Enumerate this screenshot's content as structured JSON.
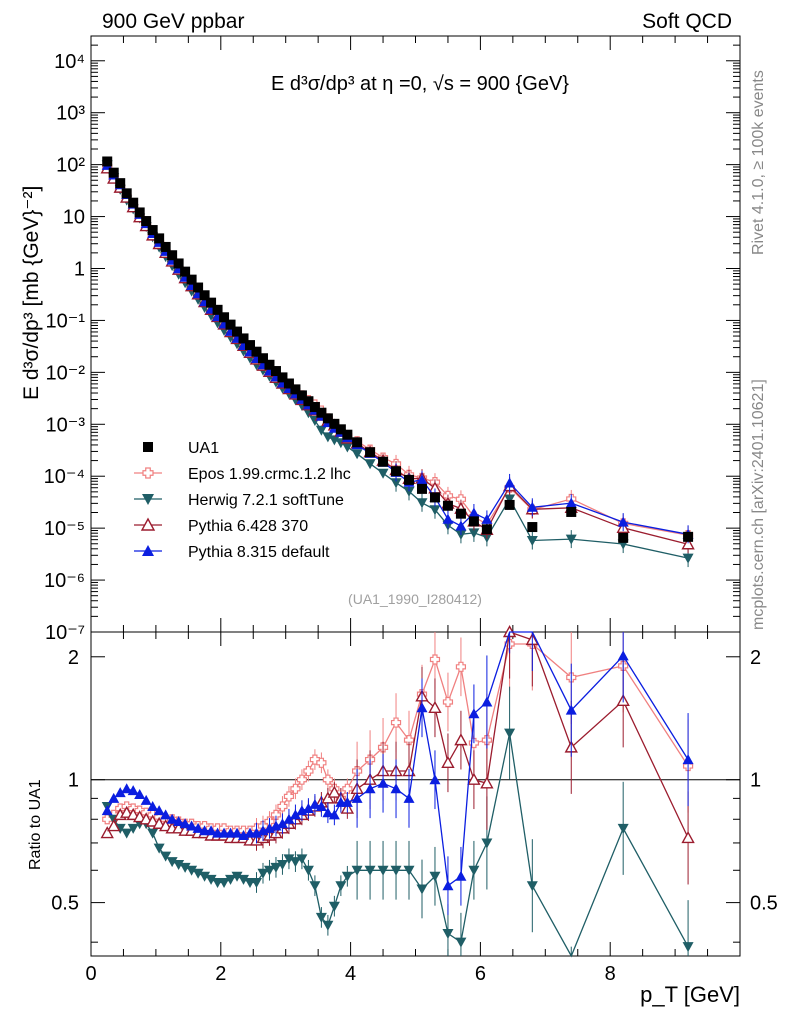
{
  "header": {
    "left": "900 GeV ppbar",
    "right": "Soft QCD",
    "side_top": "Rivet 4.1.0, ≥ 100k events",
    "side_bottom": "mcplots.cern.ch [arXiv:2401.10621]"
  },
  "chart_data": {
    "type": "scatter",
    "title": "E  d³σ/dp³ at η =0, √s = 900 {GeV}",
    "watermark": "(UA1_1990_I280412)",
    "xlabel": "p_T [GeV]",
    "ylabel": "E d³σ/dp³ [mb {GeV}⁻²]",
    "ratio_ylabel": "Ratio to UA1",
    "xlim": [
      0,
      10
    ],
    "ylim": [
      1e-07,
      30000
    ],
    "ratio_ylim": [
      0.37,
      2.3
    ],
    "x_ticks": [
      "0",
      "2",
      "4",
      "6",
      "8"
    ],
    "y_ticks": [
      "10⁴",
      "10³",
      "10²",
      "10",
      "1",
      "10⁻¹",
      "10⁻²",
      "10⁻³",
      "10⁻⁴",
      "10⁻⁵",
      "10⁻⁶",
      "10⁻⁷"
    ],
    "ratio_ticks": [
      "2",
      "1",
      "0.5"
    ],
    "x": [
      0.25,
      0.35,
      0.45,
      0.55,
      0.65,
      0.75,
      0.85,
      0.95,
      1.05,
      1.15,
      1.25,
      1.35,
      1.45,
      1.55,
      1.65,
      1.75,
      1.85,
      1.95,
      2.05,
      2.15,
      2.25,
      2.35,
      2.45,
      2.55,
      2.65,
      2.75,
      2.85,
      2.95,
      3.05,
      3.15,
      3.25,
      3.35,
      3.45,
      3.55,
      3.65,
      3.75,
      3.85,
      3.95,
      4.1,
      4.3,
      4.5,
      4.7,
      4.9,
      5.1,
      5.3,
      5.5,
      5.7,
      5.9,
      6.1,
      6.45,
      6.8,
      7.4,
      8.2,
      9.2
    ],
    "ua1": [
      115,
      70,
      44,
      28,
      18.5,
      12,
      8.2,
      5.5,
      3.8,
      2.6,
      1.8,
      1.25,
      0.87,
      0.61,
      0.43,
      0.305,
      0.22,
      0.16,
      0.115,
      0.083,
      0.061,
      0.045,
      0.0335,
      0.025,
      0.0187,
      0.014,
      0.0106,
      0.008,
      0.0061,
      0.0047,
      0.0036,
      0.00278,
      0.00215,
      0.00167,
      0.0013,
      0.00102,
      0.0008,
      0.00063,
      0.00045,
      0.00029,
      0.00019,
      0.000125,
      8.5e-05,
      5.7e-05,
      3.9e-05,
      2.7e-05,
      1.9e-05,
      1.35e-05,
      9.5e-06,
      2.8e-05,
      1.05e-05,
      2.05e-05,
      6.5e-06,
      6.8e-06
    ],
    "series": [
      {
        "name": "UA1",
        "color": "#000000",
        "marker": "square"
      },
      {
        "name": "Epos 1.99.crmc.1.2 lhc",
        "color": "#f08080",
        "marker": "cross",
        "ratio": [
          0.8,
          0.82,
          0.85,
          0.86,
          0.85,
          0.84,
          0.83,
          0.82,
          0.81,
          0.8,
          0.8,
          0.79,
          0.78,
          0.78,
          0.77,
          0.77,
          0.76,
          0.76,
          0.76,
          0.75,
          0.75,
          0.75,
          0.75,
          0.76,
          0.77,
          0.79,
          0.82,
          0.86,
          0.91,
          0.95,
          1.0,
          1.05,
          1.12,
          1.1,
          1.0,
          0.95,
          0.9,
          0.95,
          1.05,
          1.12,
          1.2,
          1.38,
          1.25,
          1.62,
          1.97,
          1.55,
          1.89,
          1.23,
          1.25,
          2.15,
          2.15,
          1.78,
          1.9,
          1.08
        ]
      },
      {
        "name": "Herwig 7.2.1 softTune",
        "color": "#1f5e66",
        "marker": "triangle-down",
        "ratio": [
          0.86,
          0.8,
          0.76,
          0.74,
          0.76,
          0.78,
          0.78,
          0.74,
          0.68,
          0.65,
          0.63,
          0.62,
          0.61,
          0.6,
          0.59,
          0.58,
          0.57,
          0.56,
          0.56,
          0.57,
          0.58,
          0.57,
          0.56,
          0.56,
          0.59,
          0.6,
          0.61,
          0.62,
          0.64,
          0.63,
          0.64,
          0.6,
          0.55,
          0.46,
          0.44,
          0.49,
          0.55,
          0.58,
          0.6,
          0.6,
          0.6,
          0.6,
          0.6,
          0.54,
          0.58,
          0.42,
          0.4,
          0.6,
          0.7,
          1.3,
          0.55,
          0.3,
          0.76,
          0.39
        ]
      },
      {
        "name": "Pythia 6.428 370",
        "color": "#9b1c2e",
        "marker": "triangle-up-open",
        "ratio": [
          0.74,
          0.77,
          0.82,
          0.83,
          0.82,
          0.81,
          0.8,
          0.79,
          0.78,
          0.77,
          0.76,
          0.76,
          0.75,
          0.75,
          0.74,
          0.74,
          0.73,
          0.73,
          0.73,
          0.72,
          0.72,
          0.72,
          0.71,
          0.71,
          0.72,
          0.73,
          0.74,
          0.76,
          0.78,
          0.8,
          0.82,
          0.84,
          0.86,
          0.88,
          0.9,
          0.93,
          0.9,
          0.85,
          0.95,
          1.0,
          1.05,
          1.05,
          1.05,
          1.6,
          1.5,
          1.1,
          1.25,
          1.0,
          0.98,
          2.3,
          2.2,
          1.2,
          1.56,
          0.72
        ]
      },
      {
        "name": "Pythia 8.315 default",
        "color": "#0b1ee0",
        "marker": "triangle-up",
        "ratio": [
          0.84,
          0.9,
          0.93,
          0.95,
          0.94,
          0.92,
          0.89,
          0.86,
          0.84,
          0.82,
          0.8,
          0.79,
          0.78,
          0.77,
          0.76,
          0.75,
          0.75,
          0.74,
          0.74,
          0.74,
          0.74,
          0.73,
          0.74,
          0.74,
          0.75,
          0.76,
          0.77,
          0.78,
          0.8,
          0.82,
          0.84,
          0.85,
          0.87,
          0.86,
          0.83,
          0.82,
          0.88,
          0.88,
          0.9,
          0.95,
          0.98,
          0.95,
          0.9,
          1.5,
          1.0,
          0.55,
          0.58,
          1.45,
          1.55,
          2.65,
          2.4,
          1.48,
          2.01,
          1.12
        ]
      }
    ]
  }
}
